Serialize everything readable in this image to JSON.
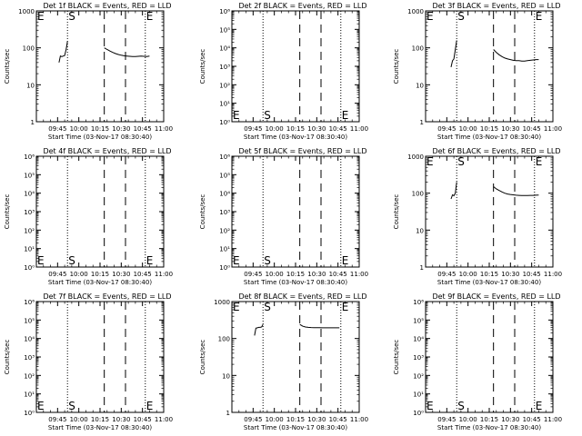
{
  "shared": {
    "ylabel": "Counts/sec",
    "xlabel": "Start Time (03-Nov-17 08:30:40)",
    "x_tick_labels": [
      "09:45",
      "10:00",
      "10:15",
      "10:30",
      "10:45",
      "11:00"
    ],
    "x_range_min": [
      30,
      120
    ],
    "x_ticks_min": [
      45,
      60,
      75,
      90,
      105,
      120
    ],
    "markers": {
      "E": "E",
      "S": "S"
    },
    "vlines_min": {
      "dotted": [
        52,
        107
      ],
      "dashed": [
        78,
        93
      ]
    }
  },
  "chart_data": [
    {
      "type": "line",
      "title": "Det 1f BLACK = Events, RED = LLD",
      "y_scale": "log",
      "ylim": [
        1,
        1000
      ],
      "y_tick_labels": [
        "1",
        "10",
        "100",
        "1000"
      ],
      "markers": [
        {
          "label": "E",
          "x_min": 30,
          "pos": "top"
        },
        {
          "label": "S",
          "x_min": 52,
          "pos": "top"
        },
        {
          "label": "E",
          "x_min": 107,
          "pos": "top"
        }
      ],
      "series": [
        {
          "x": [
            46,
            47,
            48,
            49,
            50,
            51,
            52
          ],
          "y": [
            40,
            60,
            58,
            60,
            62,
            90,
            150
          ]
        },
        {
          "x": [
            78,
            80,
            82,
            84,
            86,
            88,
            90,
            92,
            94,
            96,
            98,
            100,
            102,
            104,
            106,
            108,
            110
          ],
          "y": [
            100,
            90,
            82,
            75,
            70,
            66,
            63,
            61,
            60,
            59,
            58,
            58,
            59,
            60,
            59,
            58,
            60
          ]
        }
      ]
    },
    {
      "type": "line",
      "title": "Det 2f BLACK = Events, RED = LLD",
      "y_scale": "log",
      "ylim": [
        1,
        1000000
      ],
      "y_tick_labels": [
        "10⁰",
        "10¹",
        "10²",
        "10³",
        "10⁴",
        "10⁵",
        "10⁶"
      ],
      "markers": [
        {
          "label": "E",
          "x_min": 30,
          "pos": "bottom"
        },
        {
          "label": "S",
          "x_min": 52,
          "pos": "bottom"
        },
        {
          "label": "E",
          "x_min": 107,
          "pos": "bottom"
        }
      ],
      "series": []
    },
    {
      "type": "line",
      "title": "Det 3f BLACK = Events, RED = LLD",
      "y_scale": "log",
      "ylim": [
        1,
        1000
      ],
      "y_tick_labels": [
        "1",
        "10",
        "100",
        "1000"
      ],
      "markers": [
        {
          "label": "E",
          "x_min": 30,
          "pos": "top"
        },
        {
          "label": "S",
          "x_min": 52,
          "pos": "top"
        },
        {
          "label": "E",
          "x_min": 107,
          "pos": "top"
        }
      ],
      "series": [
        {
          "x": [
            48,
            49,
            50,
            51,
            52
          ],
          "y": [
            30,
            45,
            50,
            90,
            160
          ]
        },
        {
          "x": [
            78,
            80,
            82,
            84,
            86,
            88,
            90,
            92,
            94,
            96,
            98,
            100,
            102,
            104,
            106,
            108,
            110
          ],
          "y": [
            90,
            75,
            65,
            58,
            53,
            50,
            48,
            46,
            45,
            45,
            44,
            44,
            45,
            46,
            47,
            48,
            48
          ]
        }
      ]
    },
    {
      "type": "line",
      "title": "Det 4f BLACK = Events, RED = LLD",
      "y_scale": "log",
      "ylim": [
        1,
        1000000
      ],
      "y_tick_labels": [
        "10⁰",
        "10¹",
        "10²",
        "10³",
        "10⁴",
        "10⁵",
        "10⁶"
      ],
      "markers": [
        {
          "label": "E",
          "x_min": 30,
          "pos": "bottom"
        },
        {
          "label": "S",
          "x_min": 52,
          "pos": "bottom"
        },
        {
          "label": "E",
          "x_min": 107,
          "pos": "bottom"
        }
      ],
      "series": []
    },
    {
      "type": "line",
      "title": "Det 5f BLACK = Events, RED = LLD",
      "y_scale": "log",
      "ylim": [
        1,
        1000000
      ],
      "y_tick_labels": [
        "10⁰",
        "10¹",
        "10²",
        "10³",
        "10⁴",
        "10⁵",
        "10⁶"
      ],
      "markers": [
        {
          "label": "E",
          "x_min": 30,
          "pos": "bottom"
        },
        {
          "label": "S",
          "x_min": 52,
          "pos": "bottom"
        },
        {
          "label": "E",
          "x_min": 107,
          "pos": "bottom"
        }
      ],
      "series": []
    },
    {
      "type": "line",
      "title": "Det 6f BLACK = Events, RED = LLD",
      "y_scale": "log",
      "ylim": [
        1,
        1000
      ],
      "y_tick_labels": [
        "1",
        "10",
        "100",
        "1000"
      ],
      "markers": [
        {
          "label": "E",
          "x_min": 30,
          "pos": "top"
        },
        {
          "label": "S",
          "x_min": 52,
          "pos": "top"
        },
        {
          "label": "E",
          "x_min": 107,
          "pos": "top"
        }
      ],
      "series": [
        {
          "x": [
            48,
            49,
            50,
            51,
            52
          ],
          "y": [
            70,
            90,
            85,
            100,
            200
          ]
        },
        {
          "x": [
            78,
            80,
            82,
            84,
            86,
            88,
            90,
            92,
            94,
            96,
            98,
            100,
            102,
            104,
            106,
            108,
            110
          ],
          "y": [
            150,
            130,
            118,
            108,
            100,
            95,
            92,
            90,
            88,
            87,
            86,
            86,
            86,
            87,
            87,
            88,
            89
          ]
        }
      ]
    },
    {
      "type": "line",
      "title": "Det 7f BLACK = Events, RED = LLD",
      "y_scale": "log",
      "ylim": [
        1,
        1000000
      ],
      "y_tick_labels": [
        "10⁰",
        "10¹",
        "10²",
        "10³",
        "10⁴",
        "10⁵",
        "10⁶"
      ],
      "markers": [
        {
          "label": "E",
          "x_min": 30,
          "pos": "bottom"
        },
        {
          "label": "S",
          "x_min": 52,
          "pos": "bottom"
        },
        {
          "label": "E",
          "x_min": 107,
          "pos": "bottom"
        }
      ],
      "series": []
    },
    {
      "type": "line",
      "title": "Det 8f BLACK = Events, RED = LLD",
      "y_scale": "log",
      "ylim": [
        1,
        1000
      ],
      "y_tick_labels": [
        "1",
        "10",
        "100",
        "1000"
      ],
      "markers": [
        {
          "label": "E",
          "x_min": 30,
          "pos": "top"
        },
        {
          "label": "S",
          "x_min": 52,
          "pos": "top"
        },
        {
          "label": "E",
          "x_min": 107,
          "pos": "top"
        }
      ],
      "series": [
        {
          "x": [
            46,
            47,
            48,
            49,
            50,
            51,
            52
          ],
          "y": [
            120,
            190,
            195,
            200,
            200,
            205,
            240
          ]
        },
        {
          "x": [
            78,
            80,
            82,
            84,
            86,
            88,
            90,
            92,
            94,
            96,
            98,
            100,
            102,
            104,
            106
          ],
          "y": [
            240,
            215,
            205,
            200,
            198,
            197,
            196,
            196,
            195,
            195,
            195,
            195,
            195,
            195,
            195
          ]
        }
      ]
    },
    {
      "type": "line",
      "title": "Det 9f BLACK = Events, RED = LLD",
      "y_scale": "log",
      "ylim": [
        1,
        1000000
      ],
      "y_tick_labels": [
        "10⁰",
        "10¹",
        "10²",
        "10³",
        "10⁴",
        "10⁵",
        "10⁶"
      ],
      "markers": [
        {
          "label": "E",
          "x_min": 30,
          "pos": "bottom"
        },
        {
          "label": "S",
          "x_min": 52,
          "pos": "bottom"
        },
        {
          "label": "E",
          "x_min": 107,
          "pos": "bottom"
        }
      ],
      "series": []
    }
  ]
}
